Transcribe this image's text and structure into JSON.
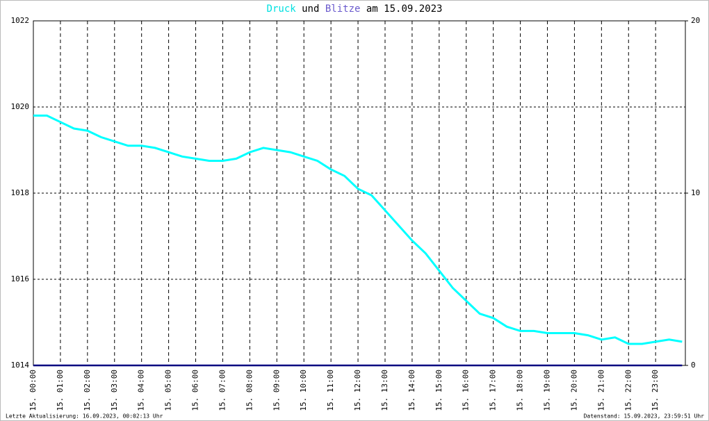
{
  "chart_data": {
    "type": "line",
    "title_joiner": "und",
    "title_suffix": "am 15.09.2023",
    "footer_left": "Letzte Aktualisierung: 16.09.2023, 00:02:13 Uhr",
    "footer_right": "Datenstand: 15.09.2023, 23:59:51 Uhr",
    "x": [
      0,
      0.5,
      1,
      1.5,
      2,
      2.5,
      3,
      3.5,
      4,
      4.5,
      5,
      5.5,
      6,
      6.5,
      7,
      7.5,
      8,
      8.5,
      9,
      9.5,
      10,
      10.5,
      11,
      11.5,
      12,
      12.5,
      13,
      13.5,
      14,
      14.5,
      15,
      15.5,
      16,
      16.5,
      17,
      17.5,
      18,
      18.5,
      19,
      19.5,
      20,
      20.5,
      21,
      21.5,
      22,
      22.5,
      23,
      23.5,
      23.98
    ],
    "series": [
      {
        "name": "Druck",
        "color": "#00ffff",
        "axis": "y",
        "values": [
          1019.8,
          1019.8,
          1019.65,
          1019.5,
          1019.45,
          1019.3,
          1019.2,
          1019.1,
          1019.1,
          1019.05,
          1018.95,
          1018.85,
          1018.8,
          1018.75,
          1018.75,
          1018.8,
          1018.95,
          1019.05,
          1019.0,
          1018.95,
          1018.85,
          1018.75,
          1018.55,
          1018.4,
          1018.1,
          1017.95,
          1017.6,
          1017.25,
          1016.9,
          1016.6,
          1016.2,
          1015.8,
          1015.5,
          1015.2,
          1015.1,
          1014.9,
          1014.8,
          1014.8,
          1014.75,
          1014.75,
          1014.75,
          1014.7,
          1014.6,
          1014.65,
          1014.5,
          1014.5,
          1014.55,
          1014.6,
          1014.55
        ]
      },
      {
        "name": "Blitze",
        "color": "#000080",
        "axis": "y2",
        "values": [
          0,
          0,
          0,
          0,
          0,
          0,
          0,
          0,
          0,
          0,
          0,
          0,
          0,
          0,
          0,
          0,
          0,
          0,
          0,
          0,
          0,
          0,
          0,
          0,
          0,
          0,
          0,
          0,
          0,
          0,
          0,
          0,
          0,
          0,
          0,
          0,
          0,
          0,
          0,
          0,
          0,
          0,
          0,
          0,
          0,
          0,
          0,
          0,
          0
        ]
      }
    ],
    "xlim": [
      0,
      24.1
    ],
    "xticks": [
      {
        "value": 0,
        "label": "15. 00:00"
      },
      {
        "value": 1,
        "label": "15. 01:00"
      },
      {
        "value": 2,
        "label": "15. 02:00"
      },
      {
        "value": 3,
        "label": "15. 03:00"
      },
      {
        "value": 4,
        "label": "15. 04:00"
      },
      {
        "value": 5,
        "label": "15. 05:00"
      },
      {
        "value": 6,
        "label": "15. 06:00"
      },
      {
        "value": 7,
        "label": "15. 07:00"
      },
      {
        "value": 8,
        "label": "15. 08:00"
      },
      {
        "value": 9,
        "label": "15. 09:00"
      },
      {
        "value": 10,
        "label": "15. 10:00"
      },
      {
        "value": 11,
        "label": "15. 11:00"
      },
      {
        "value": 12,
        "label": "15. 12:00"
      },
      {
        "value": 13,
        "label": "15. 13:00"
      },
      {
        "value": 14,
        "label": "15. 14:00"
      },
      {
        "value": 15,
        "label": "15. 15:00"
      },
      {
        "value": 16,
        "label": "15. 16:00"
      },
      {
        "value": 17,
        "label": "15. 17:00"
      },
      {
        "value": 18,
        "label": "15. 18:00"
      },
      {
        "value": 19,
        "label": "15. 19:00"
      },
      {
        "value": 20,
        "label": "15. 20:00"
      },
      {
        "value": 21,
        "label": "15. 21:00"
      },
      {
        "value": 22,
        "label": "15. 22:00"
      },
      {
        "value": 23,
        "label": "15. 23:00"
      }
    ],
    "ylim": [
      1014,
      1022
    ],
    "yticks": [
      1014,
      1016,
      1018,
      1020,
      1022
    ],
    "y2lim": [
      0,
      20
    ],
    "y2ticks": [
      0,
      10,
      20
    ],
    "grid": true
  }
}
